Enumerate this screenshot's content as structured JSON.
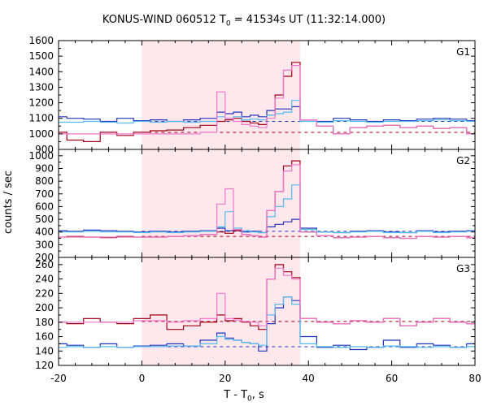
{
  "title": {
    "prefix": "KONUS-WIND 060512 T",
    "sub": "0",
    "suffix": " = 41534s UT (11:32:14.000)"
  },
  "axes": {
    "ylabel": "counts / sec",
    "xlabel_prefix": "T - T",
    "xlabel_sub": "0",
    "xlabel_suffix": ", s"
  },
  "colors": {
    "shade": "#ffe8ec",
    "blue": "#2233bb",
    "darkred": "#a00018",
    "lightblue": "#55bbee",
    "pink": "#ee77cc"
  },
  "chart_data": [
    {
      "type": "line",
      "panel": "G1",
      "xlim": [
        -20,
        80
      ],
      "ylim": [
        900,
        1600
      ],
      "yticks": [
        900,
        1000,
        1100,
        1200,
        1300,
        1400,
        1500,
        1600
      ],
      "xticks": [
        -20,
        0,
        20,
        40,
        60,
        80
      ],
      "shade_interval": [
        0,
        38
      ],
      "background_levels": [
        {
          "color": "blue",
          "y": 1080
        },
        {
          "color": "darkred",
          "y": 1010
        }
      ],
      "series": [
        {
          "color": "blue",
          "x": [
            -22,
            -18,
            -14,
            -10,
            -6,
            -2,
            2,
            6,
            10,
            14,
            18,
            20,
            22,
            24,
            26,
            28,
            30,
            32,
            34,
            36,
            38,
            42,
            46,
            50,
            54,
            58,
            62,
            66,
            70,
            74,
            78,
            82
          ],
          "y": [
            1110,
            1100,
            1095,
            1080,
            1100,
            1085,
            1090,
            1080,
            1090,
            1100,
            1140,
            1130,
            1140,
            1110,
            1120,
            1110,
            1150,
            1160,
            1160,
            1175,
            1090,
            1080,
            1100,
            1090,
            1080,
            1090,
            1085,
            1095,
            1100,
            1095,
            1085,
            1090
          ]
        },
        {
          "color": "darkred",
          "x": [
            -22,
            -18,
            -14,
            -10,
            -6,
            -2,
            2,
            6,
            10,
            14,
            18,
            20,
            22,
            24,
            26,
            28,
            30,
            32,
            34,
            36,
            38,
            42,
            46,
            50,
            54,
            58,
            62,
            66,
            70,
            74,
            78,
            82
          ],
          "y": [
            1010,
            960,
            950,
            1010,
            990,
            1010,
            1020,
            1025,
            1040,
            1055,
            1080,
            1090,
            1100,
            1080,
            1070,
            1060,
            1120,
            1250,
            1370,
            1460,
            1090,
            1050,
            1000,
            1040,
            1050,
            1055,
            1040,
            1050,
            1035,
            1040,
            1000,
            1010
          ]
        },
        {
          "color": "lightblue",
          "x": [
            -22,
            -18,
            -14,
            -10,
            -6,
            -2,
            2,
            6,
            10,
            14,
            18,
            20,
            22,
            24,
            26,
            28,
            30,
            32,
            34,
            36,
            38,
            42,
            46,
            50,
            54,
            58,
            62,
            66,
            70,
            74,
            78,
            82
          ],
          "y": [
            1075,
            1075,
            1080,
            1075,
            1070,
            1080,
            1075,
            1080,
            1075,
            1080,
            1110,
            1100,
            1110,
            1090,
            1095,
            1090,
            1120,
            1130,
            1140,
            1215,
            1080,
            1075,
            1085,
            1080,
            1075,
            1080,
            1080,
            1085,
            1090,
            1085,
            1080,
            1080
          ]
        },
        {
          "color": "pink",
          "x": [
            -22,
            -18,
            -14,
            -10,
            -6,
            -2,
            2,
            6,
            10,
            14,
            18,
            20,
            22,
            24,
            26,
            28,
            30,
            32,
            34,
            36,
            38,
            42,
            46,
            50,
            54,
            58,
            62,
            66,
            70,
            74,
            78,
            82
          ],
          "y": [
            1000,
            1000,
            1000,
            1000,
            1000,
            1000,
            1000,
            1000,
            1000,
            1010,
            1270,
            1100,
            1080,
            1060,
            1050,
            1040,
            1100,
            1230,
            1410,
            1440,
            1090,
            1050,
            1000,
            1040,
            1050,
            1055,
            1040,
            1050,
            1035,
            1040,
            1000,
            1010
          ]
        }
      ],
      "label": "G1"
    },
    {
      "type": "line",
      "panel": "G2",
      "xlim": [
        -20,
        80
      ],
      "ylim": [
        200,
        1050
      ],
      "yticks": [
        200,
        300,
        400,
        500,
        600,
        700,
        800,
        900,
        1000
      ],
      "xticks": [
        -20,
        0,
        20,
        40,
        60,
        80
      ],
      "shade_interval": [
        0,
        38
      ],
      "background_levels": [
        {
          "color": "blue",
          "y": 405
        },
        {
          "color": "darkred",
          "y": 365
        }
      ],
      "series": [
        {
          "color": "blue",
          "x": [
            -22,
            -18,
            -14,
            -10,
            -6,
            -2,
            2,
            6,
            10,
            14,
            18,
            20,
            22,
            24,
            26,
            28,
            30,
            32,
            34,
            36,
            38,
            42,
            46,
            50,
            54,
            58,
            62,
            66,
            70,
            74,
            78,
            82
          ],
          "y": [
            410,
            405,
            415,
            410,
            405,
            400,
            405,
            400,
            405,
            410,
            430,
            410,
            420,
            400,
            405,
            395,
            440,
            460,
            480,
            500,
            430,
            400,
            395,
            405,
            410,
            400,
            395,
            410,
            400,
            405,
            410,
            405
          ]
        },
        {
          "color": "darkred",
          "x": [
            -22,
            -18,
            -14,
            -10,
            -6,
            -2,
            2,
            6,
            10,
            14,
            18,
            20,
            22,
            24,
            26,
            28,
            30,
            32,
            34,
            36,
            38,
            42,
            46,
            50,
            54,
            58,
            62,
            66,
            70,
            74,
            78,
            82
          ],
          "y": [
            360,
            365,
            360,
            355,
            365,
            360,
            360,
            365,
            370,
            380,
            400,
            390,
            410,
            380,
            370,
            360,
            570,
            720,
            920,
            960,
            400,
            370,
            355,
            360,
            365,
            355,
            350,
            365,
            360,
            365,
            355,
            360
          ]
        },
        {
          "color": "lightblue",
          "x": [
            -22,
            -18,
            -14,
            -10,
            -6,
            -2,
            2,
            6,
            10,
            14,
            18,
            20,
            22,
            24,
            26,
            28,
            30,
            32,
            34,
            36,
            38,
            42,
            46,
            50,
            54,
            58,
            62,
            66,
            70,
            74,
            78,
            82
          ],
          "y": [
            400,
            400,
            405,
            400,
            400,
            395,
            400,
            395,
            400,
            405,
            440,
            560,
            430,
            410,
            400,
            395,
            520,
            600,
            660,
            770,
            420,
            400,
            395,
            400,
            405,
            395,
            395,
            405,
            395,
            400,
            405,
            400
          ]
        },
        {
          "color": "pink",
          "x": [
            -22,
            -18,
            -14,
            -10,
            -6,
            -2,
            2,
            6,
            10,
            14,
            18,
            20,
            22,
            24,
            26,
            28,
            30,
            32,
            34,
            36,
            38,
            42,
            46,
            50,
            54,
            58,
            62,
            66,
            70,
            74,
            78,
            82
          ],
          "y": [
            360,
            360,
            360,
            360,
            360,
            360,
            360,
            365,
            370,
            380,
            620,
            740,
            420,
            380,
            370,
            360,
            570,
            720,
            880,
            930,
            400,
            370,
            355,
            360,
            365,
            355,
            350,
            365,
            360,
            365,
            355,
            360
          ]
        }
      ],
      "label": "G2"
    },
    {
      "type": "line",
      "panel": "G3",
      "xlim": [
        -20,
        80
      ],
      "ylim": [
        120,
        270
      ],
      "yticks": [
        120,
        140,
        160,
        180,
        200,
        220,
        240,
        260
      ],
      "xticks": [
        -20,
        0,
        20,
        40,
        60,
        80
      ],
      "shade_interval": [
        0,
        38
      ],
      "background_levels": [
        {
          "color": "blue",
          "y": 146
        },
        {
          "color": "darkred",
          "y": 181
        }
      ],
      "series": [
        {
          "color": "blue",
          "x": [
            -22,
            -18,
            -14,
            -10,
            -6,
            -2,
            2,
            6,
            10,
            14,
            18,
            20,
            22,
            24,
            26,
            28,
            30,
            32,
            34,
            36,
            38,
            42,
            46,
            50,
            54,
            58,
            62,
            66,
            70,
            74,
            78,
            82
          ],
          "y": [
            150,
            148,
            145,
            150,
            145,
            147,
            148,
            150,
            147,
            155,
            165,
            158,
            155,
            152,
            150,
            140,
            178,
            200,
            215,
            210,
            160,
            145,
            148,
            142,
            145,
            155,
            145,
            150,
            148,
            145,
            150,
            138
          ]
        },
        {
          "color": "darkred",
          "x": [
            -22,
            -18,
            -14,
            -10,
            -6,
            -2,
            2,
            6,
            10,
            14,
            18,
            20,
            22,
            24,
            26,
            28,
            30,
            32,
            34,
            36,
            38,
            42,
            46,
            50,
            54,
            58,
            62,
            66,
            70,
            74,
            78,
            82
          ],
          "y": [
            180,
            178,
            185,
            180,
            178,
            185,
            190,
            170,
            175,
            180,
            190,
            182,
            185,
            180,
            175,
            170,
            240,
            260,
            250,
            242,
            185,
            180,
            178,
            182,
            180,
            185,
            175,
            180,
            185,
            180,
            178,
            183
          ]
        },
        {
          "color": "lightblue",
          "x": [
            -22,
            -18,
            -14,
            -10,
            -6,
            -2,
            2,
            6,
            10,
            14,
            18,
            20,
            22,
            24,
            26,
            28,
            30,
            32,
            34,
            36,
            38,
            42,
            46,
            50,
            54,
            58,
            62,
            66,
            70,
            74,
            78,
            82
          ],
          "y": [
            145,
            146,
            145,
            146,
            145,
            146,
            146,
            147,
            147,
            150,
            160,
            156,
            155,
            152,
            150,
            148,
            190,
            205,
            215,
            205,
            150,
            146,
            145,
            146,
            145,
            147,
            146,
            145,
            146,
            145,
            146,
            145
          ]
        },
        {
          "color": "pink",
          "x": [
            -22,
            -18,
            -14,
            -10,
            -6,
            -2,
            2,
            6,
            10,
            14,
            18,
            20,
            22,
            24,
            26,
            28,
            30,
            32,
            34,
            36,
            38,
            42,
            46,
            50,
            54,
            58,
            62,
            66,
            70,
            74,
            78,
            82
          ],
          "y": [
            180,
            180,
            180,
            180,
            180,
            182,
            182,
            180,
            182,
            185,
            220,
            185,
            183,
            181,
            180,
            175,
            240,
            255,
            245,
            240,
            185,
            180,
            178,
            182,
            180,
            185,
            175,
            180,
            185,
            180,
            178,
            183
          ]
        }
      ],
      "label": "G3"
    }
  ]
}
